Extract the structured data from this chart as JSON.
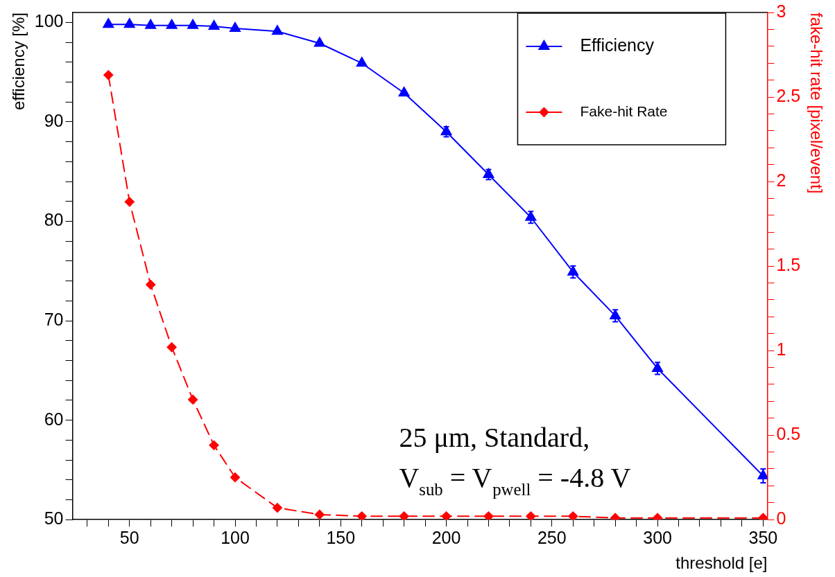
{
  "chart_data": {
    "type": "line",
    "xlabel": "threshold [e]",
    "ylabel": "efficiency [%]",
    "y2label": "fake-hit rate [pixel/event]",
    "x": [
      40,
      50,
      60,
      70,
      80,
      90,
      100,
      120,
      140,
      160,
      180,
      200,
      220,
      240,
      260,
      280,
      300,
      350
    ],
    "series": [
      {
        "name": "Efficiency",
        "color": "#0000ff",
        "marker": "triangle",
        "line_style": "solid",
        "values": [
          99.8,
          99.8,
          99.7,
          99.7,
          99.7,
          99.6,
          99.4,
          99.1,
          97.9,
          95.9,
          92.9,
          89.0,
          84.7,
          80.4,
          74.9,
          70.5,
          65.2,
          54.4
        ],
        "errors": [
          null,
          null,
          null,
          null,
          null,
          null,
          null,
          null,
          null,
          null,
          null,
          0.5,
          0.5,
          0.6,
          0.6,
          0.6,
          0.6,
          0.7
        ]
      },
      {
        "name": "Fake-hit Rate",
        "color": "#ff0000",
        "marker": "diamond",
        "line_style": "dashed",
        "axis": "y2",
        "values": [
          2.63,
          1.88,
          1.39,
          1.02,
          0.71,
          0.44,
          0.25,
          0.07,
          0.03,
          0.02,
          0.02,
          0.02,
          0.02,
          0.02,
          0.02,
          0.01,
          0.01,
          0.01
        ]
      }
    ],
    "xlim": [
      23,
      352
    ],
    "xticks": [
      {
        "value": 30,
        "label": null
      },
      {
        "value": 40,
        "label": null
      },
      50,
      {
        "value": 60,
        "label": null
      },
      {
        "value": 70,
        "label": null
      },
      {
        "value": 80,
        "label": null
      },
      {
        "value": 90,
        "label": null
      },
      100,
      {
        "value": 110,
        "label": null
      },
      {
        "value": 120,
        "label": null
      },
      {
        "value": 130,
        "label": null
      },
      {
        "value": 140,
        "label": null
      },
      150,
      {
        "value": 160,
        "label": null
      },
      {
        "value": 170,
        "label": null
      },
      {
        "value": 180,
        "label": null
      },
      {
        "value": 190,
        "label": null
      },
      200,
      {
        "value": 210,
        "label": null
      },
      {
        "value": 220,
        "label": null
      },
      {
        "value": 230,
        "label": null
      },
      {
        "value": 240,
        "label": null
      },
      250,
      {
        "value": 260,
        "label": null
      },
      {
        "value": 270,
        "label": null
      },
      {
        "value": 280,
        "label": null
      },
      {
        "value": 290,
        "label": null
      },
      300,
      {
        "value": 310,
        "label": null
      },
      {
        "value": 320,
        "label": null
      },
      {
        "value": 330,
        "label": null
      },
      {
        "value": 340,
        "label": null
      },
      350
    ],
    "ylim": [
      50,
      101
    ],
    "yticks": [
      50,
      {
        "value": 52,
        "label": null
      },
      {
        "value": 54,
        "label": null
      },
      {
        "value": 56,
        "label": null
      },
      {
        "value": 58,
        "label": null
      },
      60,
      {
        "value": 62,
        "label": null
      },
      {
        "value": 64,
        "label": null
      },
      {
        "value": 66,
        "label": null
      },
      {
        "value": 68,
        "label": null
      },
      70,
      {
        "value": 72,
        "label": null
      },
      {
        "value": 74,
        "label": null
      },
      {
        "value": 76,
        "label": null
      },
      {
        "value": 78,
        "label": null
      },
      80,
      {
        "value": 82,
        "label": null
      },
      {
        "value": 84,
        "label": null
      },
      {
        "value": 86,
        "label": null
      },
      {
        "value": 88,
        "label": null
      },
      90,
      {
        "value": 92,
        "label": null
      },
      {
        "value": 94,
        "label": null
      },
      {
        "value": 96,
        "label": null
      },
      {
        "value": 98,
        "label": null
      },
      100
    ],
    "y2lim": [
      0,
      3
    ],
    "y2ticks": [
      0,
      {
        "value": 0.1,
        "label": null
      },
      {
        "value": 0.2,
        "label": null
      },
      {
        "value": 0.3,
        "label": null
      },
      {
        "value": 0.4,
        "label": null
      },
      0.5,
      {
        "value": 0.6,
        "label": null
      },
      {
        "value": 0.7,
        "label": null
      },
      {
        "value": 0.8,
        "label": null
      },
      {
        "value": 0.9,
        "label": null
      },
      1,
      {
        "value": 1.1,
        "label": null
      },
      {
        "value": 1.2,
        "label": null
      },
      {
        "value": 1.3,
        "label": null
      },
      {
        "value": 1.4,
        "label": null
      },
      1.5,
      {
        "value": 1.6,
        "label": null
      },
      {
        "value": 1.7,
        "label": null
      },
      {
        "value": 1.8,
        "label": null
      },
      {
        "value": 1.9,
        "label": null
      },
      2,
      {
        "value": 2.1,
        "label": null
      },
      {
        "value": 2.2,
        "label": null
      },
      {
        "value": 2.3,
        "label": null
      },
      {
        "value": 2.4,
        "label": null
      },
      2.5,
      {
        "value": 2.6,
        "label": null
      },
      {
        "value": 2.7,
        "label": null
      },
      {
        "value": 2.8,
        "label": null
      },
      {
        "value": 2.9,
        "label": null
      },
      3
    ],
    "grid": false,
    "legend": "top right",
    "annotations": [
      "25 μm, Standard,",
      "V$_{sub}$ = V$_{pwell}$ = -4.8 V"
    ]
  }
}
